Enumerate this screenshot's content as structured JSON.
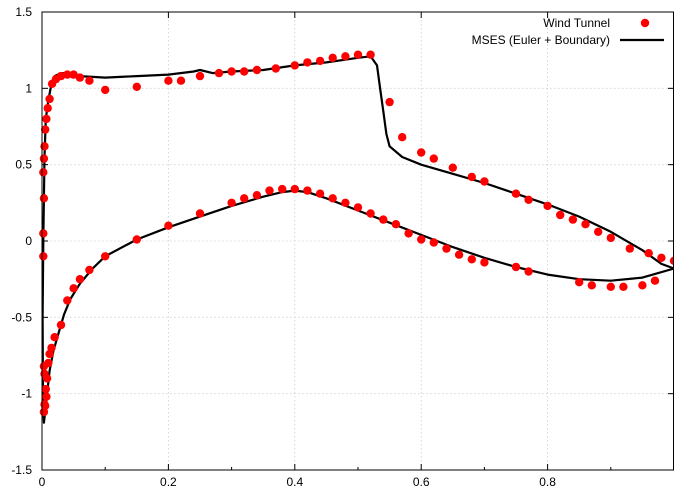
{
  "chart_data": {
    "type": "scatter",
    "title": "",
    "xlabel": "",
    "ylabel": "",
    "xlim": [
      0,
      1
    ],
    "ylim": [
      -1.5,
      1.5
    ],
    "grid": true,
    "legend_position": "top-right",
    "x_ticks": [
      "0",
      "0.2",
      "0.4",
      "0.6",
      "0.8"
    ],
    "x_tick_values": [
      0,
      0.2,
      0.4,
      0.6,
      0.8
    ],
    "y_ticks": [
      "1.5",
      "1",
      "0.5",
      "0",
      "-0.5",
      "-1",
      "-1.5"
    ],
    "y_tick_values": [
      1.5,
      1,
      0.5,
      0,
      -0.5,
      -1,
      -1.5
    ],
    "series": [
      {
        "name": "Wind Tunnel",
        "kind": "points",
        "color": "#ff0000",
        "points": [
          [
            0.002,
            0.45
          ],
          [
            0.003,
            0.54
          ],
          [
            0.004,
            0.62
          ],
          [
            0.005,
            0.73
          ],
          [
            0.007,
            0.8
          ],
          [
            0.009,
            0.87
          ],
          [
            0.012,
            0.93
          ],
          [
            0.016,
            1.03
          ],
          [
            0.022,
            1.06
          ],
          [
            0.03,
            1.08
          ],
          [
            0.04,
            1.09
          ],
          [
            0.05,
            1.09
          ],
          [
            0.06,
            1.07
          ],
          [
            0.075,
            1.05
          ],
          [
            0.1,
            0.99
          ],
          [
            0.15,
            1.01
          ],
          [
            0.2,
            1.05
          ],
          [
            0.22,
            1.05
          ],
          [
            0.25,
            1.08
          ],
          [
            0.28,
            1.1
          ],
          [
            0.3,
            1.11
          ],
          [
            0.32,
            1.11
          ],
          [
            0.34,
            1.12
          ],
          [
            0.37,
            1.13
          ],
          [
            0.4,
            1.15
          ],
          [
            0.42,
            1.17
          ],
          [
            0.44,
            1.18
          ],
          [
            0.46,
            1.2
          ],
          [
            0.48,
            1.21
          ],
          [
            0.5,
            1.22
          ],
          [
            0.52,
            1.22
          ],
          [
            0.55,
            0.91
          ],
          [
            0.57,
            0.68
          ],
          [
            0.6,
            0.58
          ],
          [
            0.62,
            0.54
          ],
          [
            0.65,
            0.48
          ],
          [
            0.68,
            0.42
          ],
          [
            0.7,
            0.39
          ],
          [
            0.75,
            0.31
          ],
          [
            0.77,
            0.27
          ],
          [
            0.8,
            0.23
          ],
          [
            0.82,
            0.17
          ],
          [
            0.84,
            0.14
          ],
          [
            0.86,
            0.11
          ],
          [
            0.88,
            0.06
          ],
          [
            0.9,
            0.02
          ],
          [
            0.93,
            -0.05
          ],
          [
            0.96,
            -0.08
          ],
          [
            0.98,
            -0.11
          ],
          [
            1.0,
            -0.13
          ],
          [
            0.003,
            0.28
          ],
          [
            0.002,
            0.05
          ],
          [
            0.002,
            -0.1
          ],
          [
            0.003,
            -0.82
          ],
          [
            0.004,
            -0.87
          ],
          [
            0.006,
            -0.97
          ],
          [
            0.007,
            -1.02
          ],
          [
            0.005,
            -1.08
          ],
          [
            0.003,
            -1.12
          ],
          [
            0.004,
            -1.07
          ],
          [
            0.008,
            -0.9
          ],
          [
            0.01,
            -0.8
          ],
          [
            0.012,
            -0.74
          ],
          [
            0.015,
            -0.7
          ],
          [
            0.02,
            -0.63
          ],
          [
            0.03,
            -0.55
          ],
          [
            0.04,
            -0.39
          ],
          [
            0.05,
            -0.31
          ],
          [
            0.06,
            -0.25
          ],
          [
            0.075,
            -0.19
          ],
          [
            0.1,
            -0.1
          ],
          [
            0.15,
            0.01
          ],
          [
            0.2,
            0.1
          ],
          [
            0.25,
            0.18
          ],
          [
            0.3,
            0.25
          ],
          [
            0.32,
            0.28
          ],
          [
            0.34,
            0.3
          ],
          [
            0.36,
            0.33
          ],
          [
            0.38,
            0.34
          ],
          [
            0.4,
            0.34
          ],
          [
            0.42,
            0.33
          ],
          [
            0.44,
            0.31
          ],
          [
            0.46,
            0.28
          ],
          [
            0.48,
            0.25
          ],
          [
            0.5,
            0.22
          ],
          [
            0.52,
            0.18
          ],
          [
            0.54,
            0.14
          ],
          [
            0.56,
            0.11
          ],
          [
            0.58,
            0.05
          ],
          [
            0.6,
            0.01
          ],
          [
            0.62,
            -0.01
          ],
          [
            0.64,
            -0.05
          ],
          [
            0.66,
            -0.09
          ],
          [
            0.68,
            -0.12
          ],
          [
            0.7,
            -0.14
          ],
          [
            0.75,
            -0.17
          ],
          [
            0.77,
            -0.2
          ],
          [
            0.85,
            -0.27
          ],
          [
            0.87,
            -0.29
          ],
          [
            0.9,
            -0.3
          ],
          [
            0.92,
            -0.3
          ],
          [
            0.95,
            -0.29
          ],
          [
            0.97,
            -0.26
          ]
        ]
      },
      {
        "name": "MSES (Euler + Boundary)",
        "kind": "line",
        "color": "#000000",
        "points": [
          [
            1.0,
            -0.18
          ],
          [
            0.98,
            -0.15
          ],
          [
            0.95,
            -0.06
          ],
          [
            0.9,
            0.06
          ],
          [
            0.85,
            0.16
          ],
          [
            0.8,
            0.24
          ],
          [
            0.75,
            0.31
          ],
          [
            0.7,
            0.38
          ],
          [
            0.65,
            0.44
          ],
          [
            0.6,
            0.5
          ],
          [
            0.57,
            0.55
          ],
          [
            0.55,
            0.62
          ],
          [
            0.545,
            0.7
          ],
          [
            0.54,
            0.85
          ],
          [
            0.535,
            1.0
          ],
          [
            0.53,
            1.15
          ],
          [
            0.52,
            1.21
          ],
          [
            0.5,
            1.2
          ],
          [
            0.45,
            1.17
          ],
          [
            0.4,
            1.15
          ],
          [
            0.35,
            1.12
          ],
          [
            0.3,
            1.11
          ],
          [
            0.27,
            1.1
          ],
          [
            0.25,
            1.12
          ],
          [
            0.24,
            1.11
          ],
          [
            0.2,
            1.09
          ],
          [
            0.15,
            1.08
          ],
          [
            0.1,
            1.07
          ],
          [
            0.06,
            1.08
          ],
          [
            0.04,
            1.1
          ],
          [
            0.03,
            1.1
          ],
          [
            0.02,
            1.08
          ],
          [
            0.015,
            1.03
          ],
          [
            0.01,
            0.92
          ],
          [
            0.006,
            0.8
          ],
          [
            0.004,
            0.55
          ],
          [
            0.002,
            0.0
          ],
          [
            0.001,
            -0.5
          ],
          [
            0.0015,
            -0.9
          ],
          [
            0.002,
            -1.1
          ],
          [
            0.003,
            -1.19
          ],
          [
            0.005,
            -1.12
          ],
          [
            0.008,
            -1.0
          ],
          [
            0.012,
            -0.85
          ],
          [
            0.018,
            -0.72
          ],
          [
            0.025,
            -0.62
          ],
          [
            0.035,
            -0.48
          ],
          [
            0.045,
            -0.38
          ],
          [
            0.06,
            -0.28
          ],
          [
            0.08,
            -0.18
          ],
          [
            0.1,
            -0.1
          ],
          [
            0.15,
            0.01
          ],
          [
            0.2,
            0.09
          ],
          [
            0.25,
            0.16
          ],
          [
            0.3,
            0.23
          ],
          [
            0.35,
            0.29
          ],
          [
            0.38,
            0.32
          ],
          [
            0.4,
            0.33
          ],
          [
            0.42,
            0.32
          ],
          [
            0.45,
            0.28
          ],
          [
            0.5,
            0.2
          ],
          [
            0.55,
            0.12
          ],
          [
            0.6,
            0.04
          ],
          [
            0.65,
            -0.04
          ],
          [
            0.7,
            -0.11
          ],
          [
            0.75,
            -0.17
          ],
          [
            0.8,
            -0.22
          ],
          [
            0.85,
            -0.25
          ],
          [
            0.9,
            -0.26
          ],
          [
            0.95,
            -0.24
          ],
          [
            1.0,
            -0.18
          ]
        ]
      }
    ]
  }
}
